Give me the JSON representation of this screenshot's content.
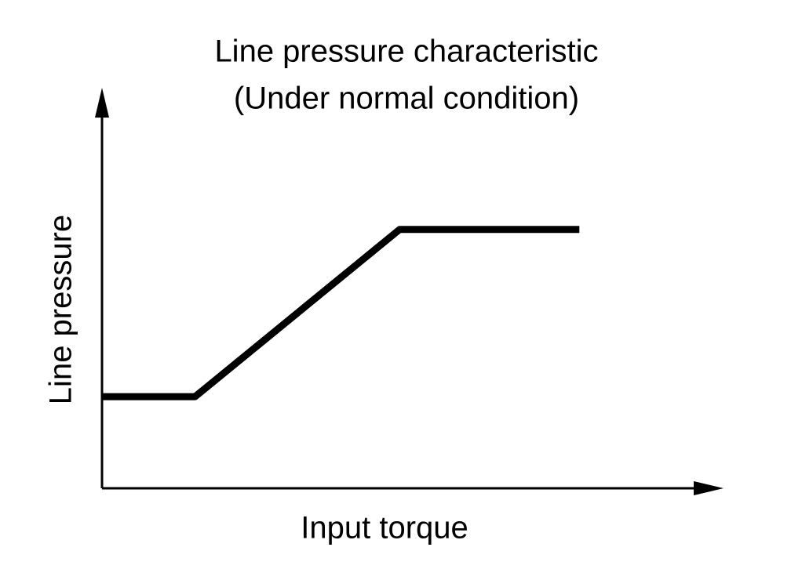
{
  "chart_data": {
    "type": "line",
    "title": "Line pressure characteristic",
    "subtitle": "(Under normal condition)",
    "x_label": "Input torque",
    "y_label": "Line pressure",
    "x": [
      0,
      15,
      48,
      77
    ],
    "series": [
      {
        "color": "#000000",
        "values": [
          23,
          23,
          65,
          65
        ]
      }
    ],
    "xlim": [
      0,
      100
    ],
    "ylim": [
      0,
      100
    ]
  }
}
